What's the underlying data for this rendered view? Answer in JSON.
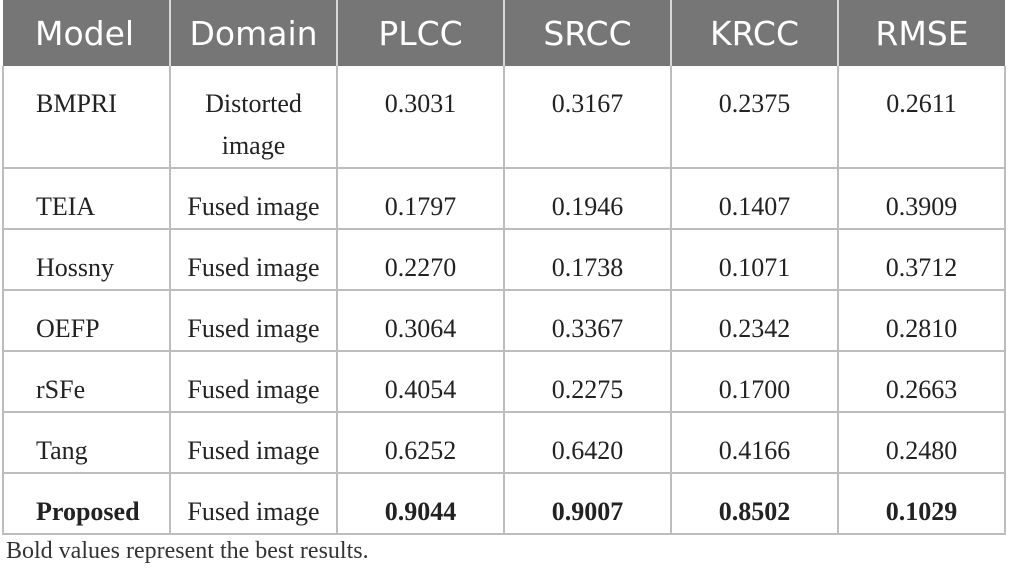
{
  "table": {
    "header": [
      "Model",
      "Domain",
      "PLCC",
      "SRCC",
      "KRCC",
      "RMSE"
    ],
    "rows": [
      [
        "BMPRI",
        "Distorted image",
        "0.3031",
        "0.3167",
        "0.2375",
        "0.2611"
      ],
      [
        "TEIA",
        "Fused image",
        "0.1797",
        "0.1946",
        "0.1407",
        "0.3909"
      ],
      [
        "Hossny",
        "Fused image",
        "0.2270",
        "0.1738",
        "0.1071",
        "0.3712"
      ],
      [
        "OEFP",
        "Fused image",
        "0.3064",
        "0.3367",
        "0.2342",
        "0.2810"
      ],
      [
        "rSFe",
        "Fused image",
        "0.4054",
        "0.2275",
        "0.1700",
        "0.2663"
      ],
      [
        "Tang",
        "Fused image",
        "0.6252",
        "0.6420",
        "0.4166",
        "0.2480"
      ],
      [
        "Proposed",
        "Fused image",
        "0.9044",
        "0.9007",
        "0.8502",
        "0.1029"
      ]
    ]
  },
  "footnote": "Bold values represent the best results."
}
